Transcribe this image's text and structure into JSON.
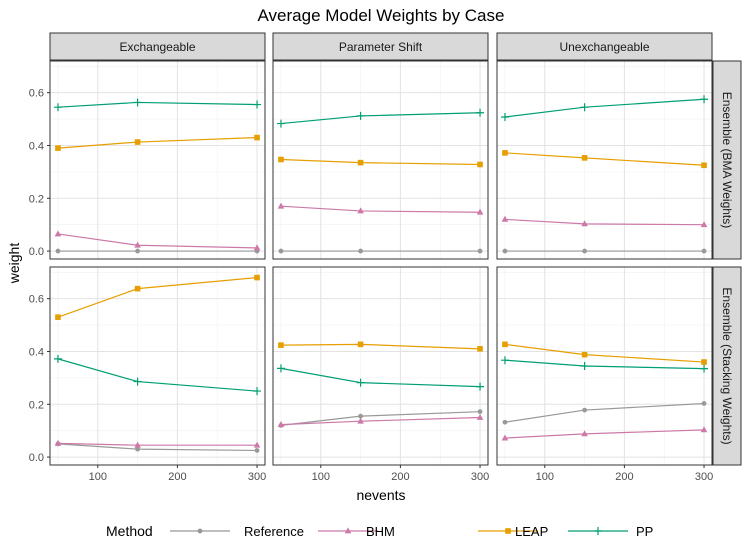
{
  "chart_data": {
    "type": "line",
    "title": "Average Model Weights by Case",
    "xlabel": "nevents",
    "ylabel": "weight",
    "x": [
      50,
      150,
      300
    ],
    "xlim": [
      40,
      310
    ],
    "ylim": [
      -0.03,
      0.72
    ],
    "xticks": [
      100,
      200,
      300
    ],
    "yticks": [
      0.0,
      0.2,
      0.4,
      0.6
    ],
    "ytick_labels": [
      "0.0",
      "0.2",
      "0.4",
      "0.6"
    ],
    "xtick_labels": [
      "100",
      "200",
      "300"
    ],
    "grid": true,
    "columns": [
      "Exchangeable",
      "Parameter Shift",
      "Unexchangeable"
    ],
    "rows": [
      "Ensemble (BMA Weights)",
      "Ensemble (Stacking Weights)"
    ],
    "legend": {
      "title": "Method",
      "position": "bottom",
      "entries": [
        {
          "name": "Reference",
          "color": "#999999",
          "marker": "circle"
        },
        {
          "name": "BHM",
          "color": "#cc79a7",
          "marker": "triangle"
        },
        {
          "name": "LEAP",
          "color": "#e69f00",
          "marker": "square"
        },
        {
          "name": "PP",
          "color": "#009e73",
          "marker": "plus"
        }
      ]
    },
    "panels": [
      {
        "row": 0,
        "col": 0,
        "series": {
          "Reference": [
            0.0,
            0.0,
            0.0
          ],
          "BHM": [
            0.065,
            0.022,
            0.012
          ],
          "LEAP": [
            0.39,
            0.413,
            0.43
          ],
          "PP": [
            0.545,
            0.563,
            0.555
          ]
        }
      },
      {
        "row": 0,
        "col": 1,
        "series": {
          "Reference": [
            0.0,
            0.0,
            0.0
          ],
          "BHM": [
            0.17,
            0.152,
            0.147
          ],
          "LEAP": [
            0.347,
            0.335,
            0.328
          ],
          "PP": [
            0.483,
            0.512,
            0.524
          ]
        }
      },
      {
        "row": 0,
        "col": 2,
        "series": {
          "Reference": [
            0.0,
            0.0,
            0.0
          ],
          "BHM": [
            0.12,
            0.103,
            0.1
          ],
          "LEAP": [
            0.372,
            0.353,
            0.325
          ],
          "PP": [
            0.508,
            0.545,
            0.575
          ]
        }
      },
      {
        "row": 1,
        "col": 0,
        "series": {
          "Reference": [
            0.05,
            0.03,
            0.025
          ],
          "BHM": [
            0.052,
            0.045,
            0.045
          ],
          "LEAP": [
            0.53,
            0.638,
            0.68
          ],
          "PP": [
            0.372,
            0.286,
            0.25
          ]
        }
      },
      {
        "row": 1,
        "col": 1,
        "series": {
          "Reference": [
            0.12,
            0.155,
            0.172
          ],
          "BHM": [
            0.123,
            0.136,
            0.15
          ],
          "LEAP": [
            0.424,
            0.427,
            0.41
          ],
          "PP": [
            0.336,
            0.282,
            0.267
          ]
        }
      },
      {
        "row": 1,
        "col": 2,
        "series": {
          "Reference": [
            0.132,
            0.178,
            0.203
          ],
          "BHM": [
            0.072,
            0.088,
            0.103
          ],
          "LEAP": [
            0.427,
            0.388,
            0.36
          ],
          "PP": [
            0.367,
            0.345,
            0.335
          ]
        }
      }
    ]
  }
}
